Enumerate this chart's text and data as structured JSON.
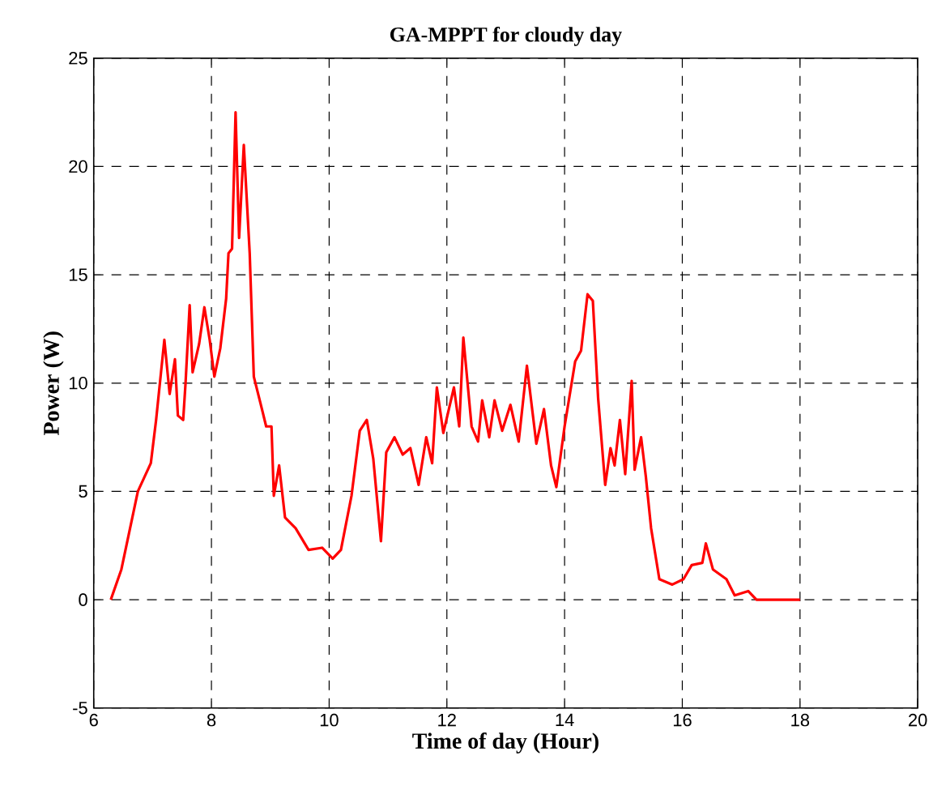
{
  "chart_data": {
    "type": "line",
    "title": "GA-MPPT for cloudy day",
    "xlabel": "Time of day (Hour)",
    "ylabel": "Power (W)",
    "xlim": [
      6,
      20
    ],
    "ylim": [
      -5,
      25
    ],
    "xticks": [
      6,
      8,
      10,
      12,
      14,
      16,
      18,
      20
    ],
    "yticks": [
      -5,
      0,
      5,
      10,
      15,
      20,
      25
    ],
    "grid": true,
    "line_style": "solid",
    "series": [
      {
        "color": "#ff0000",
        "x": [
          6.29,
          6.47,
          6.75,
          6.97,
          7.06,
          7.2,
          7.29,
          7.38,
          7.43,
          7.52,
          7.56,
          7.63,
          7.68,
          7.79,
          7.88,
          7.97,
          8.05,
          8.15,
          8.25,
          8.29,
          8.35,
          8.41,
          8.47,
          8.55,
          8.65,
          8.72,
          8.84,
          8.93,
          9.02,
          9.06,
          9.15,
          9.25,
          9.43,
          9.65,
          9.88,
          10.06,
          10.2,
          10.38,
          10.52,
          10.64,
          10.75,
          10.88,
          10.97,
          11.11,
          11.25,
          11.38,
          11.52,
          11.65,
          11.75,
          11.83,
          11.94,
          12.12,
          12.21,
          12.28,
          12.42,
          12.53,
          12.6,
          12.72,
          12.81,
          12.94,
          13.08,
          13.22,
          13.36,
          13.52,
          13.65,
          13.77,
          13.86,
          14.0,
          14.18,
          14.28,
          14.39,
          14.48,
          14.57,
          14.69,
          14.78,
          14.85,
          14.94,
          15.03,
          15.14,
          15.19,
          15.3,
          15.38,
          15.47,
          15.61,
          15.83,
          16.02,
          16.16,
          16.34,
          16.4,
          16.52,
          16.75,
          16.89,
          17.12,
          17.26,
          18.0
        ],
        "values": [
          0,
          1.4,
          5,
          6.3,
          8.3,
          12,
          9.5,
          11.1,
          8.5,
          8.3,
          10,
          13.6,
          10.5,
          11.8,
          13.5,
          12,
          10.3,
          11.6,
          13.9,
          16,
          16.2,
          22.5,
          16.7,
          21,
          16,
          10.3,
          9,
          8,
          8,
          4.8,
          6.2,
          3.8,
          3.3,
          2.3,
          2.4,
          1.9,
          2.3,
          4.8,
          7.8,
          8.3,
          6.5,
          2.7,
          6.8,
          7.5,
          6.7,
          7,
          5.3,
          7.5,
          6.3,
          9.8,
          7.7,
          9.8,
          8,
          12.1,
          8,
          7.3,
          9.2,
          7.5,
          9.2,
          7.8,
          9,
          7.3,
          10.8,
          7.2,
          8.8,
          6.2,
          5.2,
          8,
          11,
          11.5,
          14.1,
          13.8,
          9.3,
          5.3,
          7,
          6.2,
          8.3,
          5.8,
          10.1,
          6,
          7.5,
          5.7,
          3.3,
          0.95,
          0.7,
          0.95,
          1.6,
          1.7,
          2.6,
          1.4,
          0.95,
          0.2,
          0.4,
          0,
          0
        ]
      }
    ]
  }
}
